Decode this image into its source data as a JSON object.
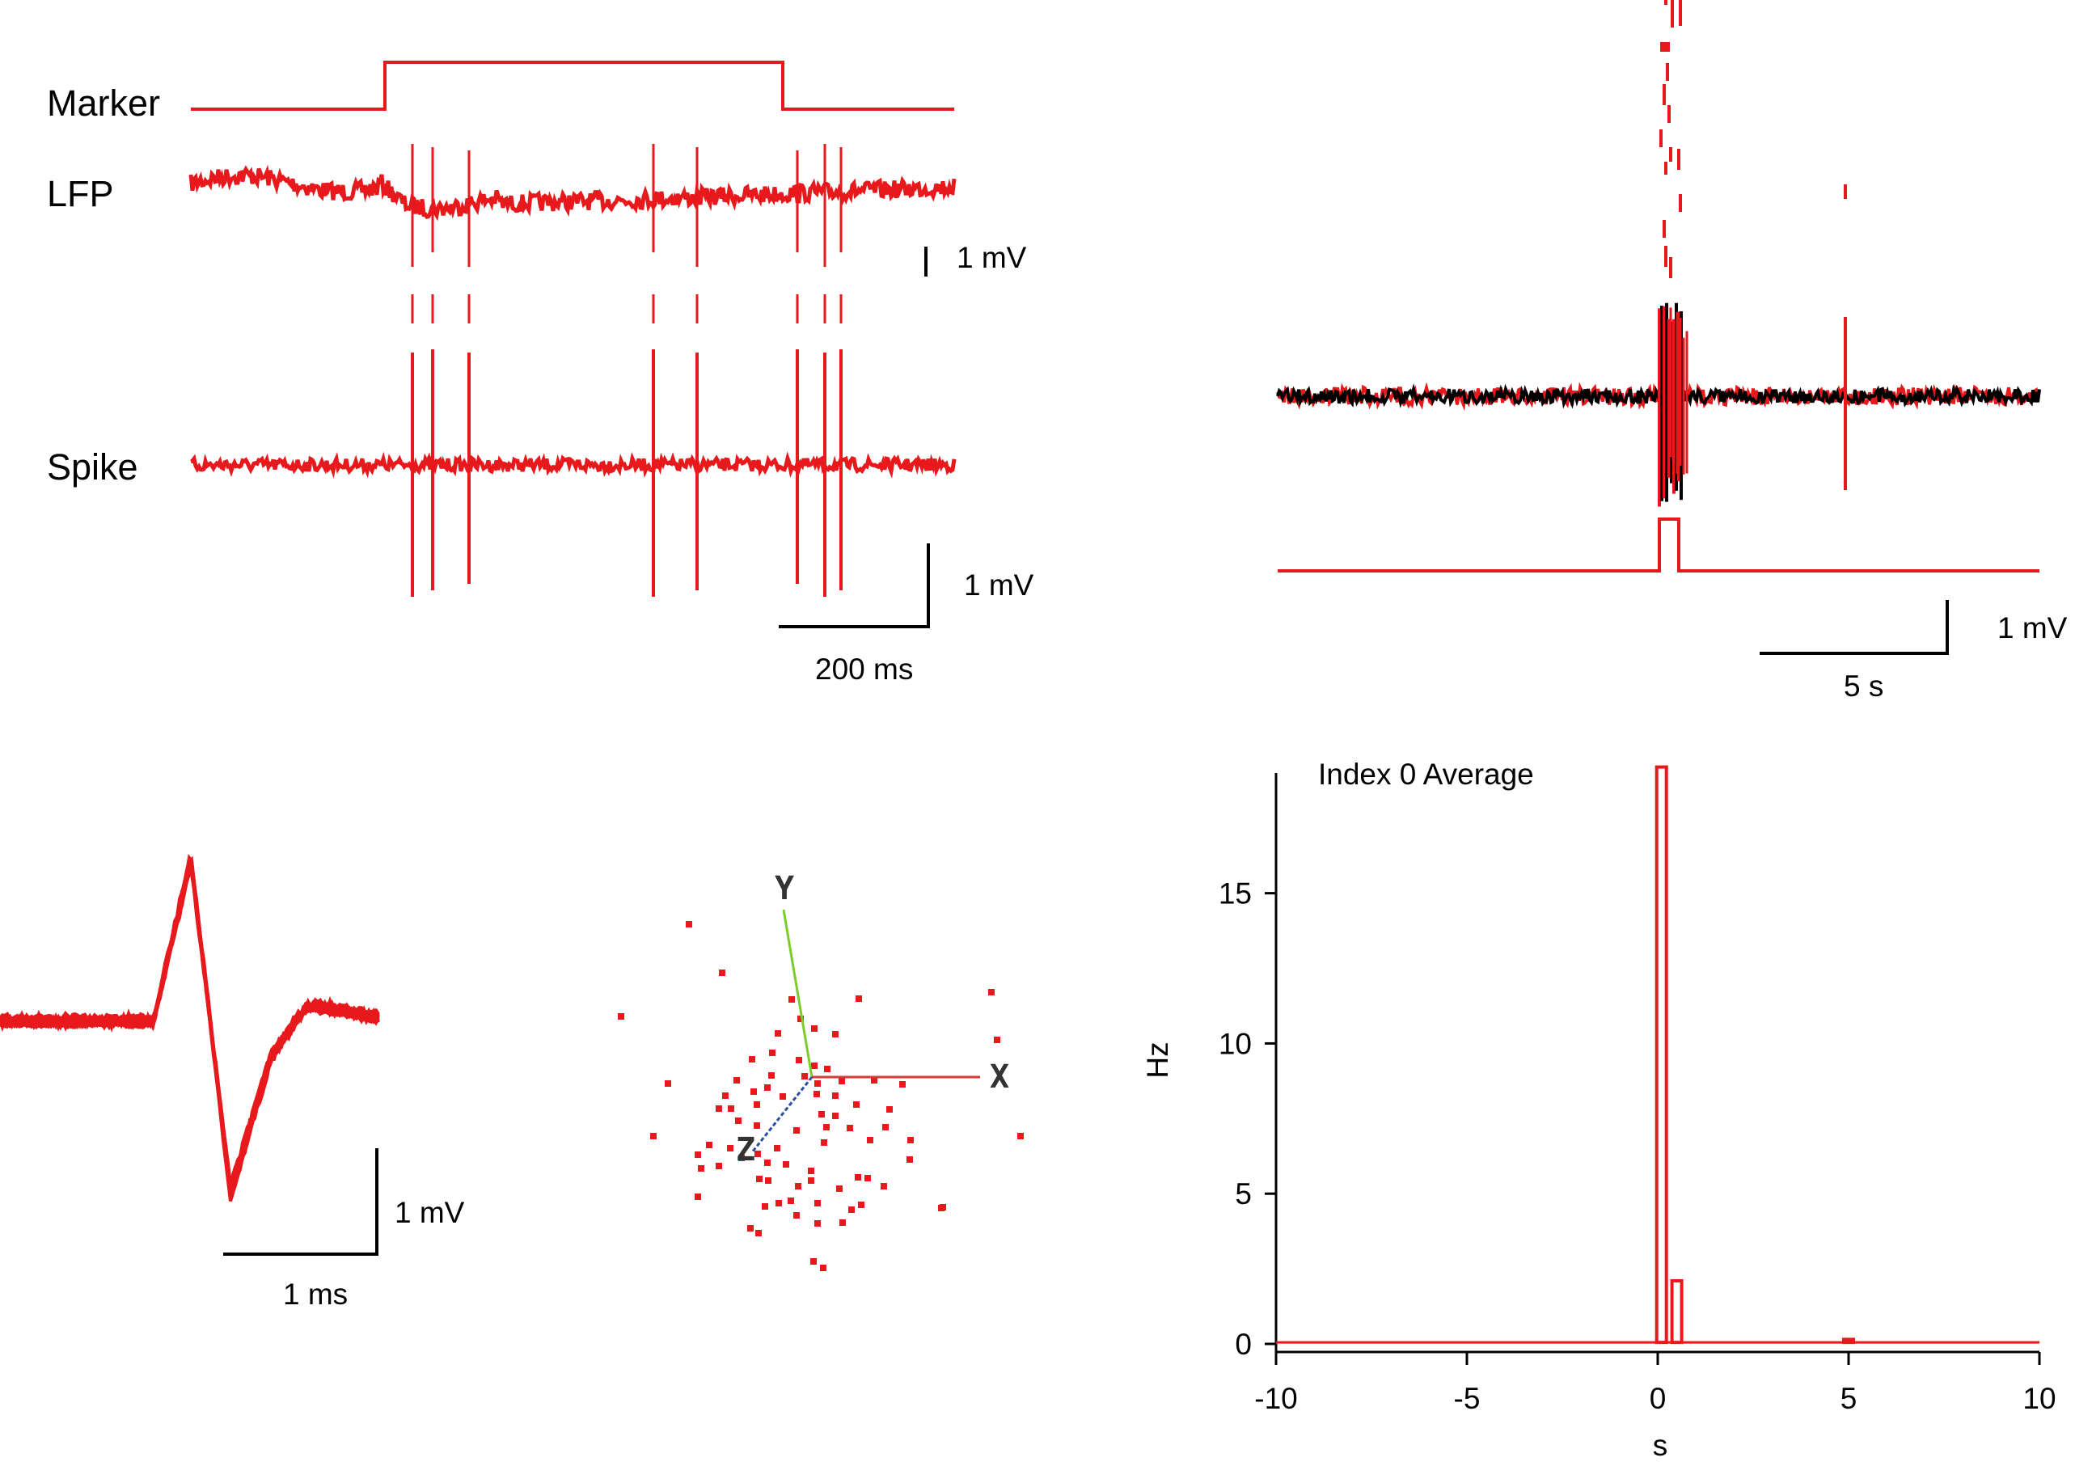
{
  "panel_a": {
    "trace_labels": [
      "Marker",
      "LFP",
      "Spike"
    ],
    "lfp_scale": "1 mV",
    "spike_scale_v": "1 mV",
    "spike_scale_t": "200 ms"
  },
  "panel_b": {
    "scale_v": "1 mV",
    "scale_t": "5 s"
  },
  "panel_c": {
    "scale_v": "1 mV",
    "scale_t": "1 ms"
  },
  "panel_d": {
    "axis_labels": [
      "Y",
      "X",
      "Z"
    ]
  },
  "colors": {
    "trace": "#e8191c",
    "overlay": "#000000",
    "axis_x": "#d63a3a",
    "axis_y": "#7ccc2b",
    "axis_z": "#2a4fa0"
  },
  "chart_data": {
    "type": "bar",
    "title": "Index 0 Average",
    "xlabel": "s",
    "ylabel": "Hz",
    "xlim": [
      -10,
      10
    ],
    "ylim": [
      0,
      19
    ],
    "x_ticks": [
      -10,
      -5,
      0,
      5,
      10
    ],
    "y_ticks": [
      0,
      5,
      10,
      15
    ],
    "bars": [
      {
        "x": 0.1,
        "y": 19.2
      },
      {
        "x": 0.5,
        "y": 2.1
      },
      {
        "x": 5.0,
        "y": 0.15
      }
    ],
    "baseline": 0.05
  }
}
